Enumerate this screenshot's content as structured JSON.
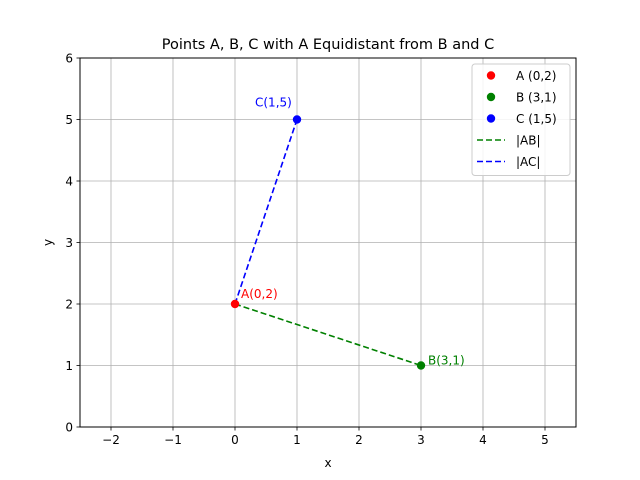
{
  "chart_data": {
    "type": "scatter",
    "title": "Points A, B, C with A Equidistant from B and C",
    "xlabel": "x",
    "ylabel": "y",
    "xlim": [
      -2.5,
      5.5
    ],
    "ylim": [
      0,
      6
    ],
    "xticks": [
      -2,
      -1,
      0,
      1,
      2,
      3,
      4,
      5
    ],
    "yticks": [
      0,
      1,
      2,
      3,
      4,
      5,
      6
    ],
    "grid": true,
    "legend_position": "top-right",
    "points": [
      {
        "key": "A",
        "legend": "A (0,2)",
        "annotation": "A(0,2)",
        "x": 0,
        "y": 2,
        "color": "#ff0000",
        "label_color": "#ff0000"
      },
      {
        "key": "B",
        "legend": "B (3,1)",
        "annotation": "B(3,1)",
        "x": 3,
        "y": 1,
        "color": "#008000",
        "label_color": "#008000"
      },
      {
        "key": "C",
        "legend": "C (1,5)",
        "annotation": "C(1,5)",
        "x": 1,
        "y": 5,
        "color": "#0000ff",
        "label_color": "#0000ff"
      }
    ],
    "segments": [
      {
        "key": "AB",
        "legend": "|AB|",
        "from": [
          0,
          2
        ],
        "to": [
          3,
          1
        ],
        "color": "#008000",
        "style": "dashed"
      },
      {
        "key": "AC",
        "legend": "|AC|",
        "from": [
          0,
          2
        ],
        "to": [
          1,
          5
        ],
        "color": "#0000ff",
        "style": "dashed"
      }
    ]
  }
}
